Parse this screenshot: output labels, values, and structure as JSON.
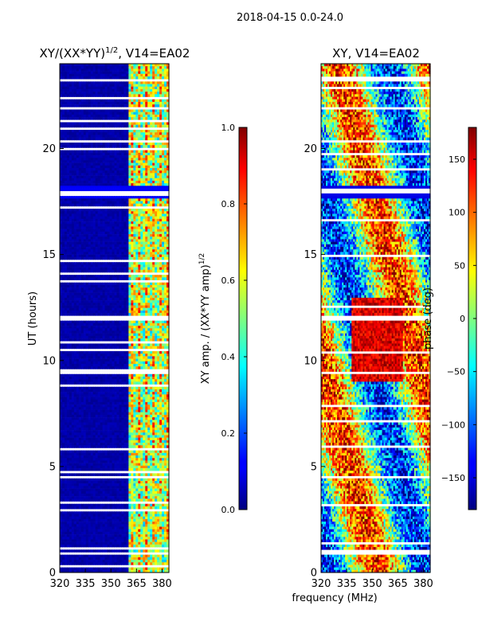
{
  "suptitle": "2018-04-15 0.0-24.0",
  "shared_xlabel": "frequency (MHz)",
  "chart_data": [
    {
      "type": "heatmap",
      "title_base": "XY/(XX*YY)",
      "title_exp": "1/2",
      "title_suffix": ", V14=EA02",
      "ylabel": "UT (hours)",
      "xlim": [
        320,
        384
      ],
      "ylim": [
        0,
        24
      ],
      "xticks": [
        320,
        335,
        350,
        365,
        380
      ],
      "yticks": [
        0,
        5,
        10,
        15,
        20
      ],
      "colormap": "jet",
      "colorbar": {
        "label_base": "XY amp. / (XX*YY amp)",
        "label_exp": "1/2",
        "range": [
          0.0,
          1.0
        ],
        "ticks": [
          "0.0",
          "0.2",
          "0.4",
          "0.6",
          "0.8",
          "1.0"
        ]
      },
      "value_summary": "near 0 below 361 MHz; bright channels (~0.4-0.9) at 361-383 MHz",
      "flagged_hours": [
        17.9,
        17.2,
        20.3,
        20.9,
        21.9,
        22.4,
        23.2,
        0.3,
        0.9,
        4.5,
        9.4,
        12.0
      ]
    },
    {
      "type": "heatmap",
      "title": "XY, V14=EA02",
      "xlim": [
        320,
        384
      ],
      "ylim": [
        0,
        24
      ],
      "xticks": [
        320,
        335,
        350,
        365,
        380
      ],
      "yticks": [
        0,
        5,
        10,
        15,
        20
      ],
      "colormap": "jet",
      "colorbar": {
        "label": "phase (deg)",
        "range": [
          -180,
          180
        ],
        "ticks": [
          "-150",
          "-100",
          "-50",
          "0",
          "50",
          "100",
          "150"
        ]
      },
      "value_summary": "phase varies across band; large positive phase near 338-368 MHz between 9-13 UT",
      "flagged_hours": [
        17.9,
        20.3,
        21.9,
        23.2,
        0.9,
        4.5,
        9.4,
        12.0
      ]
    }
  ]
}
